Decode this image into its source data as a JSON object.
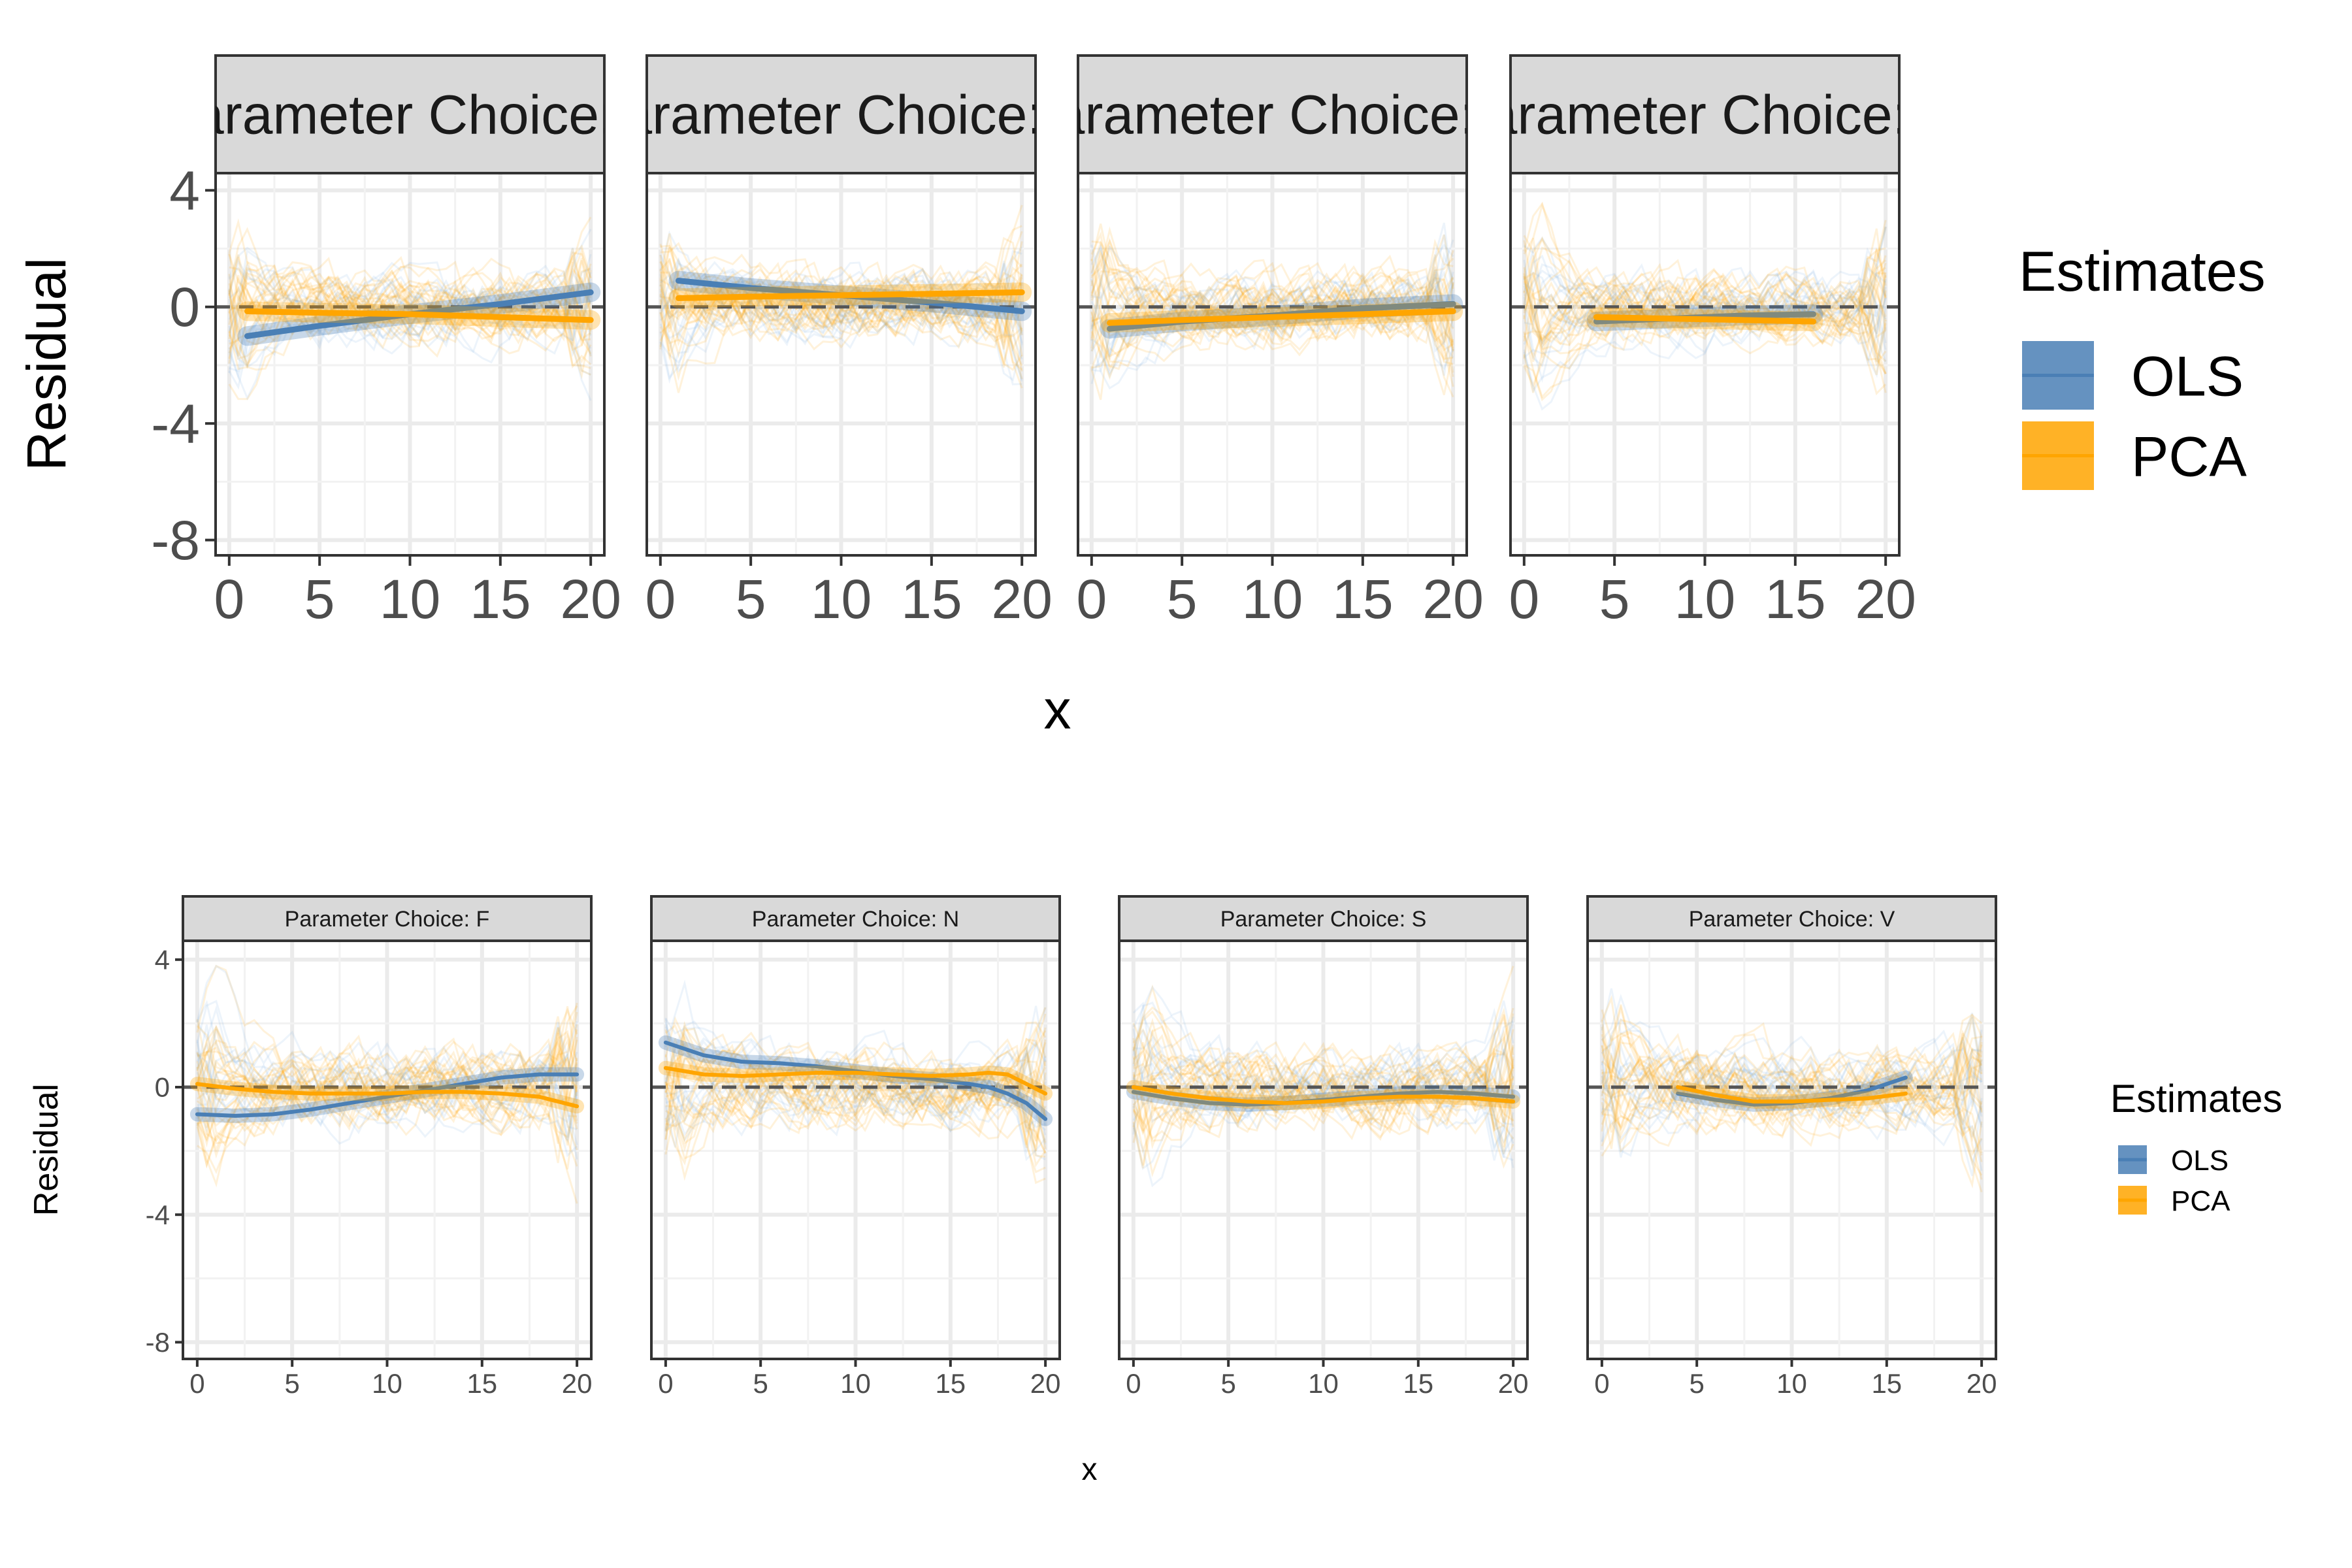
{
  "colors": {
    "ols": "#4a7fb5",
    "pca": "#ffa500",
    "strip_fill": "#d9d9d9",
    "panel_border": "#333333",
    "grid": "#ebebeb",
    "zero_line": "#555555",
    "text": "#4d4d4d"
  },
  "chart_data": [
    {
      "type": "line",
      "description_scale": "large-text",
      "xlabel": "x",
      "ylabel": "Residual",
      "xlim": [
        0,
        20
      ],
      "ylim": [
        -8,
        4
      ],
      "x_ticks": [
        0,
        5,
        10,
        15,
        20
      ],
      "y_ticks": [
        4,
        0,
        -4,
        -8
      ],
      "legend": {
        "title": "Estimates",
        "placement": "right",
        "entries": [
          "OLS",
          "PCA"
        ]
      },
      "panels": [
        {
          "strip": "Parameter Choice: F",
          "series": [
            {
              "name": "OLS",
              "x": [
                1,
                5,
                10,
                15,
                20
              ],
              "y": [
                -1.0,
                -0.65,
                -0.25,
                0.1,
                0.5
              ]
            },
            {
              "name": "PCA",
              "x": [
                1,
                5,
                10,
                15,
                20
              ],
              "y": [
                -0.15,
                -0.2,
                -0.25,
                -0.35,
                -0.45
              ]
            }
          ]
        },
        {
          "strip": "Parameter Choice: N",
          "series": [
            {
              "name": "OLS",
              "x": [
                1,
                5,
                10,
                15,
                20
              ],
              "y": [
                0.9,
                0.65,
                0.4,
                0.15,
                -0.15
              ]
            },
            {
              "name": "PCA",
              "x": [
                1,
                5,
                10,
                15,
                20
              ],
              "y": [
                0.3,
                0.35,
                0.4,
                0.45,
                0.5
              ]
            }
          ]
        },
        {
          "strip": "Parameter Choice: S",
          "series": [
            {
              "name": "OLS",
              "x": [
                1,
                5,
                10,
                15,
                20
              ],
              "y": [
                -0.75,
                -0.5,
                -0.3,
                -0.05,
                0.1
              ]
            },
            {
              "name": "PCA",
              "x": [
                1,
                5,
                10,
                15,
                20
              ],
              "y": [
                -0.55,
                -0.45,
                -0.35,
                -0.25,
                -0.15
              ]
            }
          ]
        },
        {
          "strip": "Parameter Choice: V",
          "series": [
            {
              "name": "OLS",
              "x": [
                4,
                8,
                12,
                16
              ],
              "y": [
                -0.5,
                -0.4,
                -0.3,
                -0.25
              ]
            },
            {
              "name": "PCA",
              "x": [
                4,
                8,
                12,
                16
              ],
              "y": [
                -0.35,
                -0.4,
                -0.45,
                -0.5
              ]
            }
          ]
        }
      ]
    },
    {
      "type": "line",
      "description_scale": "small-text",
      "xlabel": "x",
      "ylabel": "Residual",
      "xlim": [
        0,
        20
      ],
      "ylim": [
        -8,
        4
      ],
      "x_ticks": [
        0,
        5,
        10,
        15,
        20
      ],
      "y_ticks": [
        4,
        0,
        -4,
        -8
      ],
      "legend": {
        "title": "Estimates",
        "placement": "right",
        "entries": [
          "OLS",
          "PCA"
        ]
      },
      "panels": [
        {
          "strip": "Parameter Choice: F",
          "series": [
            {
              "name": "OLS",
              "x": [
                0,
                2,
                4,
                6,
                8,
                10,
                12,
                14,
                16,
                18,
                20
              ],
              "y": [
                -0.85,
                -0.9,
                -0.85,
                -0.7,
                -0.5,
                -0.3,
                -0.1,
                0.1,
                0.3,
                0.4,
                0.4
              ]
            },
            {
              "name": "PCA",
              "x": [
                0,
                2,
                4,
                6,
                8,
                10,
                12,
                14,
                16,
                18,
                20
              ],
              "y": [
                0.1,
                -0.05,
                -0.15,
                -0.2,
                -0.2,
                -0.2,
                -0.15,
                -0.15,
                -0.2,
                -0.3,
                -0.6
              ]
            }
          ]
        },
        {
          "strip": "Parameter Choice: N",
          "series": [
            {
              "name": "OLS",
              "x": [
                0,
                2,
                4,
                6,
                8,
                10,
                12,
                14,
                16,
                17,
                18,
                19,
                20
              ],
              "y": [
                1.4,
                1.0,
                0.8,
                0.75,
                0.65,
                0.5,
                0.35,
                0.25,
                0.1,
                0.0,
                -0.2,
                -0.5,
                -1.0
              ]
            },
            {
              "name": "PCA",
              "x": [
                0,
                2,
                4,
                6,
                8,
                10,
                12,
                14,
                16,
                17,
                18,
                19,
                20
              ],
              "y": [
                0.6,
                0.4,
                0.35,
                0.4,
                0.45,
                0.45,
                0.4,
                0.35,
                0.4,
                0.45,
                0.4,
                0.1,
                -0.2
              ]
            }
          ]
        },
        {
          "strip": "Parameter Choice: S",
          "series": [
            {
              "name": "OLS",
              "x": [
                0,
                2,
                4,
                6,
                8,
                10,
                12,
                14,
                16,
                18,
                20
              ],
              "y": [
                -0.15,
                -0.35,
                -0.5,
                -0.55,
                -0.5,
                -0.4,
                -0.3,
                -0.2,
                -0.15,
                -0.2,
                -0.3
              ]
            },
            {
              "name": "PCA",
              "x": [
                0,
                2,
                4,
                6,
                8,
                10,
                12,
                14,
                16,
                18,
                20
              ],
              "y": [
                0.0,
                -0.2,
                -0.35,
                -0.45,
                -0.5,
                -0.45,
                -0.35,
                -0.3,
                -0.3,
                -0.35,
                -0.45
              ]
            }
          ]
        },
        {
          "strip": "Parameter Choice: V",
          "series": [
            {
              "name": "OLS",
              "x": [
                4,
                6,
                8,
                10,
                12,
                14,
                16
              ],
              "y": [
                -0.2,
                -0.4,
                -0.55,
                -0.5,
                -0.35,
                -0.1,
                0.3
              ]
            },
            {
              "name": "PCA",
              "x": [
                4,
                6,
                8,
                10,
                12,
                14,
                16
              ],
              "y": [
                0.0,
                -0.25,
                -0.45,
                -0.45,
                -0.4,
                -0.35,
                -0.2
              ]
            }
          ]
        }
      ]
    }
  ]
}
